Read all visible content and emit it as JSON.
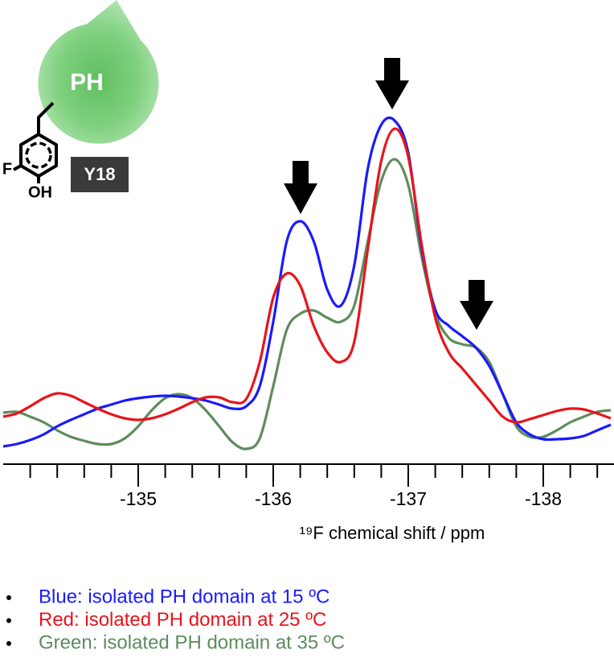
{
  "chart_data": {
    "type": "line",
    "xlabel": "¹⁹F chemical shift  / ppm",
    "annotations": {
      "domain": "PH",
      "residue": "Y18",
      "fluorine": "F",
      "hydroxyl": "OH"
    },
    "x": [
      -134.0,
      -134.1,
      -134.2,
      -134.3,
      -134.4,
      -134.5,
      -134.6,
      -134.7,
      -134.8,
      -134.9,
      -135.0,
      -135.1,
      -135.2,
      -135.3,
      -135.4,
      -135.5,
      -135.6,
      -135.7,
      -135.8,
      -135.9,
      -136.0,
      -136.1,
      -136.2,
      -136.3,
      -136.4,
      -136.5,
      -136.6,
      -136.7,
      -136.8,
      -136.9,
      -137.0,
      -137.1,
      -137.2,
      -137.3,
      -137.4,
      -137.5,
      -137.6,
      -137.7,
      -137.8,
      -137.9,
      -138.0,
      -138.1,
      -138.2,
      -138.3,
      -138.4,
      -138.5
    ],
    "series": [
      {
        "name": "Blue: isolated PH domain at 15 ºC",
        "color": "#1a1aff",
        "values": [
          22,
          25,
          30,
          37,
          47,
          55,
          62,
          69,
          74,
          79,
          82,
          84,
          85,
          84,
          82,
          79,
          74,
          69,
          72,
          97,
          177,
          277,
          302,
          277,
          217,
          197,
          247,
          367,
          422,
          427,
          387,
          267,
          192,
          172,
          159,
          145,
          122,
          87,
          52,
          37,
          31,
          31,
          32,
          35,
          42,
          49
        ]
      },
      {
        "name": "Red: isolated PH domain at 25 ºC",
        "color": "#e8141b",
        "values": [
          59,
          63,
          72,
          82,
          88,
          85,
          77,
          69,
          62,
          57,
          55,
          57,
          62,
          69,
          77,
          83,
          83,
          77,
          81,
          127,
          207,
          237,
          222,
          172,
          139,
          127,
          152,
          267,
          377,
          417,
          382,
          272,
          182,
          139,
          119,
          99,
          79,
          59,
          52,
          56,
          61,
          66,
          69,
          68,
          63,
          57
        ]
      },
      {
        "name": "Green: isolated PH domain at 35 ºC",
        "color": "#5e8c5e",
        "values": [
          64,
          65,
          59,
          52,
          42,
          34,
          29,
          25,
          25,
          32,
          47,
          67,
          82,
          87,
          82,
          67,
          47,
          27,
          19,
          32,
          97,
          167,
          187,
          191,
          182,
          177,
          197,
          277,
          352,
          379,
          347,
          257,
          187,
          157,
          149,
          145,
          127,
          87,
          47,
          34,
          34,
          42,
          52,
          59,
          65,
          67
        ]
      }
    ],
    "xlim": [
      -134.0,
      -138.5
    ],
    "ylim": [
      0,
      440
    ],
    "xticks": [
      -135,
      -136,
      -137,
      -138
    ],
    "xticks_minor": [
      -134.2,
      -134.4,
      -134.6,
      -134.8,
      -135.2,
      -135.4,
      -135.6,
      -135.8,
      -136.2,
      -136.4,
      -136.6,
      -136.8,
      -137.2,
      -137.4,
      -137.6,
      -137.8,
      -138.2,
      -138.4
    ]
  }
}
